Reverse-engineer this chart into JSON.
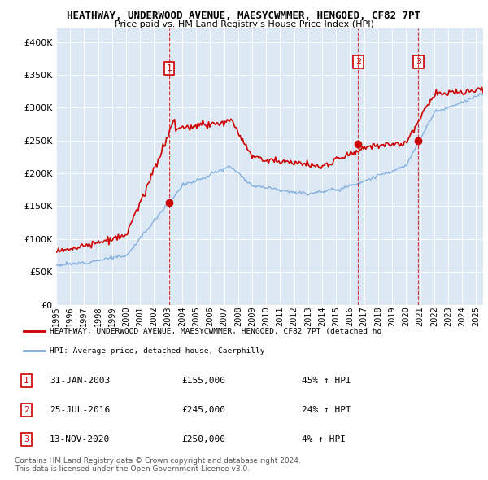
{
  "title": "HEATHWAY, UNDERWOOD AVENUE, MAESYCWMMER, HENGOED, CF82 7PT",
  "subtitle": "Price paid vs. HM Land Registry's House Price Index (HPI)",
  "red_line_label": "HEATHWAY, UNDERWOOD AVENUE, MAESYCWMMER, HENGOED, CF82 7PT (detached ho",
  "blue_line_label": "HPI: Average price, detached house, Caerphilly",
  "table_rows": [
    {
      "num": "1",
      "date": "31-JAN-2003",
      "price": "£155,000",
      "change": "45% ↑ HPI"
    },
    {
      "num": "2",
      "date": "25-JUL-2016",
      "price": "£245,000",
      "change": "24% ↑ HPI"
    },
    {
      "num": "3",
      "date": "13-NOV-2020",
      "price": "£250,000",
      "change": "4% ↑ HPI"
    }
  ],
  "sale_dates_years": [
    2003.08,
    2016.57,
    2020.87
  ],
  "sale_prices": [
    155000,
    245000,
    250000
  ],
  "footer": "Contains HM Land Registry data © Crown copyright and database right 2024.\nThis data is licensed under the Open Government Licence v3.0.",
  "ylim": [
    0,
    420000
  ],
  "yticks": [
    0,
    50000,
    100000,
    150000,
    200000,
    250000,
    300000,
    350000,
    400000
  ],
  "background_color": "#ffffff",
  "plot_bg_color": "#dde8f5",
  "grid_color": "#ffffff",
  "red_color": "#cc0000",
  "blue_color": "#7aaadd"
}
